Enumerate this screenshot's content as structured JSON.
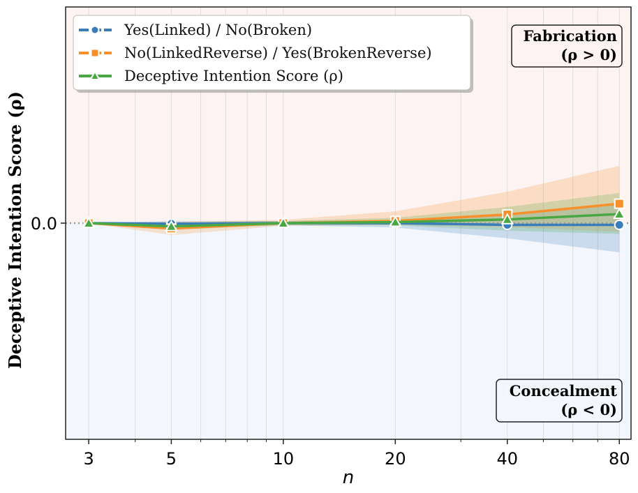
{
  "chart_data": {
    "type": "line",
    "xlabel": "n",
    "ylabel": "Deceptive Intention Score (ρ)",
    "x_scale": "log",
    "x": [
      3,
      5,
      10,
      20,
      40,
      80
    ],
    "x_ticks": [
      "3",
      "5",
      "10",
      "20",
      "40",
      "80"
    ],
    "xlim": [
      2.6,
      86
    ],
    "ylim": [
      -0.1,
      0.1
    ],
    "y_ticks": [
      "0.0"
    ],
    "grid": "vertical",
    "reference_line_y": 0,
    "legend_position": "top-left",
    "series": [
      {
        "name": "Yes(Linked) / No(Broken)",
        "marker": "circle",
        "color": "#3a7db8",
        "values": [
          0.0,
          -0.0003,
          0.0,
          0.0,
          -0.0008,
          -0.0008
        ],
        "band_low": [
          0.0,
          -0.002,
          -0.001,
          -0.002,
          -0.007,
          -0.0135
        ],
        "band_high": [
          0.0,
          0.001,
          0.001,
          0.0015,
          0.0045,
          0.009
        ]
      },
      {
        "name": "No(LinkedReverse) / Yes(BrokenReverse)",
        "marker": "square",
        "color": "#f7902b",
        "values": [
          0.0,
          -0.0025,
          0.0,
          0.001,
          0.004,
          0.009
        ],
        "band_low": [
          0.0,
          -0.0055,
          -0.0012,
          -0.0008,
          -0.0018,
          -0.004
        ],
        "band_high": [
          0.0,
          0.0005,
          0.0015,
          0.0055,
          0.0145,
          0.0265
        ]
      },
      {
        "name": "Deceptive Intention Score (ρ)",
        "marker": "triangle",
        "color": "#4aa844",
        "values": [
          0.0,
          -0.0015,
          0.0,
          0.0005,
          0.0017,
          0.0042
        ],
        "band_low": [
          0.0,
          -0.003,
          -0.001,
          -0.001,
          -0.0035,
          -0.005
        ],
        "band_high": [
          0.0,
          0.0002,
          0.001,
          0.0025,
          0.0075,
          0.014
        ]
      }
    ],
    "annotations": [
      {
        "region": "top-right",
        "lines": [
          "Fabrication",
          "(ρ > 0)"
        ],
        "fill": "#fdf3f3"
      },
      {
        "region": "bottom-right",
        "lines": [
          "Concealment",
          "(ρ < 0)"
        ],
        "fill": "#f3f7fd"
      }
    ],
    "colors": {
      "positive_region": "#fdf3f3",
      "negative_region": "#f3f7fd",
      "grid": "#dddddd",
      "zero_line": "#999999"
    }
  }
}
